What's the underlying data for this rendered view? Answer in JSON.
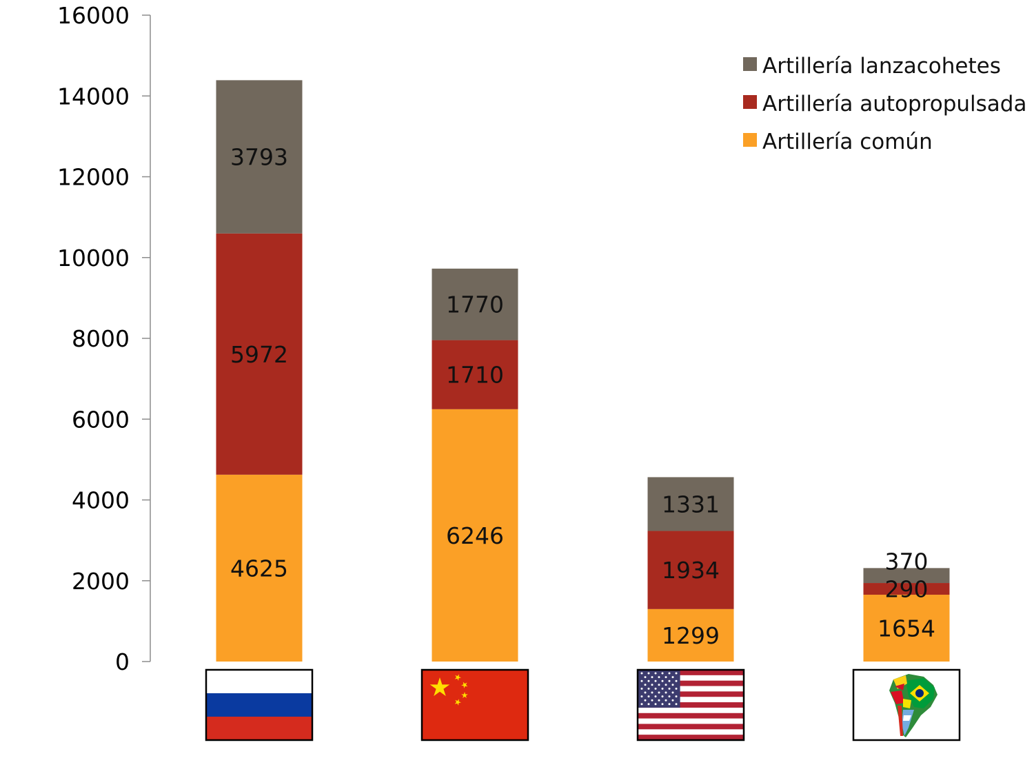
{
  "chart_data": {
    "type": "bar",
    "stacked": true,
    "categories": [
      "Rusia",
      "China",
      "Estados Unidos",
      "Sudamérica"
    ],
    "category_display": "flag-icons",
    "ylim": [
      0,
      16000
    ],
    "yticks": [
      0,
      2000,
      4000,
      6000,
      8000,
      10000,
      12000,
      14000,
      16000
    ],
    "grid": false,
    "legend_position": "top-right",
    "series": [
      {
        "name": "Artillería común",
        "color": "#fba026",
        "values": [
          4625,
          6246,
          1299,
          1654
        ]
      },
      {
        "name": "Artillería autopropulsada",
        "color": "#a82a1f",
        "values": [
          5972,
          1710,
          1934,
          290
        ]
      },
      {
        "name": "Artillería lanzacohetes",
        "color": "#71685c",
        "values": [
          3793,
          1770,
          1331,
          370
        ]
      }
    ],
    "legend_order": [
      "Artillería lanzacohetes",
      "Artillería autopropulsada",
      "Artillería común"
    ],
    "flags": [
      {
        "category": "Rusia",
        "icon": "russia-flag-icon"
      },
      {
        "category": "China",
        "icon": "china-flag-icon"
      },
      {
        "category": "Estados Unidos",
        "icon": "usa-flag-icon"
      },
      {
        "category": "Sudamérica",
        "icon": "south-america-map-icon"
      }
    ]
  }
}
